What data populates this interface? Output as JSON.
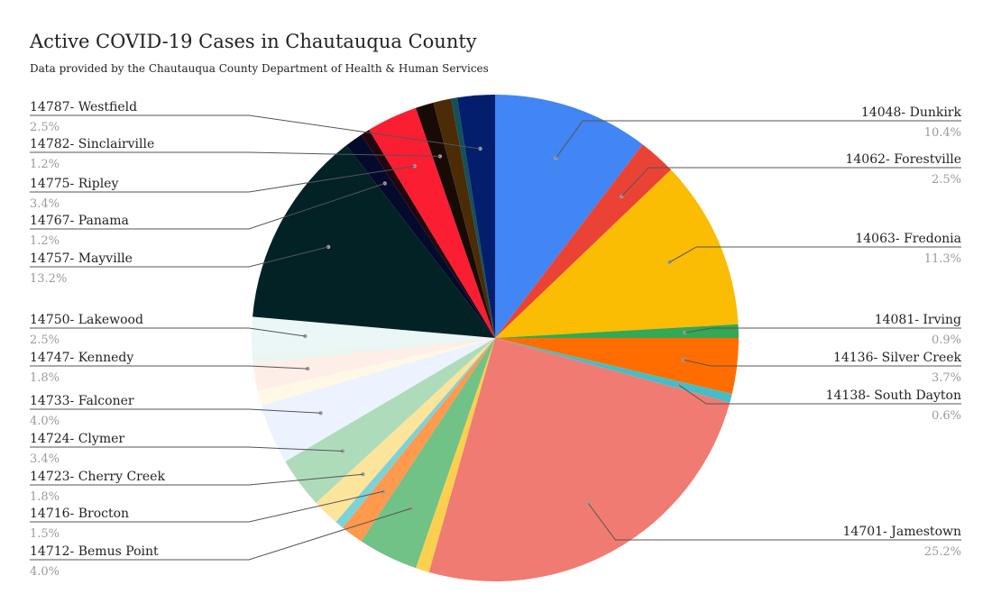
{
  "chart_data": {
    "type": "pie",
    "title": "Active COVID-19 Cases in Chautauqua County",
    "subtitle": "Data provided by the Chautauqua County Department of Health & Human Services",
    "unit": "%",
    "slices": [
      {
        "label": "14048- Dunkirk",
        "value": 10.4,
        "pct_label": "10.4%",
        "color": "#4285f4",
        "side": "right"
      },
      {
        "label": "14062- Forestville",
        "value": 2.5,
        "pct_label": "2.5%",
        "color": "#ea4335",
        "side": "right"
      },
      {
        "label": "14063- Fredonia",
        "value": 11.3,
        "pct_label": "11.3%",
        "color": "#fbbc04",
        "side": "right"
      },
      {
        "label": "14081- Irving",
        "value": 0.9,
        "pct_label": "0.9%",
        "color": "#34a853",
        "side": "right"
      },
      {
        "label": "14136- Silver Creek",
        "value": 3.7,
        "pct_label": "3.7%",
        "color": "#ff6d01",
        "side": "right"
      },
      {
        "label": "14138- South Dayton",
        "value": 0.6,
        "pct_label": "0.6%",
        "color": "#46bdc6",
        "side": "right"
      },
      {
        "label": "14701- Jamestown",
        "value": 25.2,
        "pct_label": "25.2%",
        "color": "#f07b72",
        "side": "right"
      },
      {
        "label": "",
        "value": 0.9,
        "pct_label": "",
        "color": "#fcd04f",
        "side": "none"
      },
      {
        "label": "14712- Bemus Point",
        "value": 4.0,
        "pct_label": "4.0%",
        "color": "#71c287",
        "side": "left"
      },
      {
        "label": "14716- Brocton",
        "value": 1.5,
        "pct_label": "1.5%",
        "color": "#ff994d",
        "side": "left"
      },
      {
        "label": "",
        "value": 0.6,
        "pct_label": "",
        "color": "#7ed1d7",
        "side": "none"
      },
      {
        "label": "14723- Cherry Creek",
        "value": 1.8,
        "pct_label": "1.8%",
        "color": "#fde49b",
        "side": "left"
      },
      {
        "label": "14724- Clymer",
        "value": 3.4,
        "pct_label": "3.4%",
        "color": "#aedcba",
        "side": "left"
      },
      {
        "label": "14733- Falconer",
        "value": 4.0,
        "pct_label": "4.0%",
        "color": "#ecf2fe",
        "side": "left"
      },
      {
        "label": "",
        "value": 1.0,
        "pct_label": "",
        "color": "#fff8e6",
        "side": "none"
      },
      {
        "label": "14747- Kennedy",
        "value": 1.8,
        "pct_label": "1.8%",
        "color": "#fdeee7",
        "side": "left"
      },
      {
        "label": "",
        "value": 0.6,
        "pct_label": "",
        "color": "#eaf6f0",
        "side": "none"
      },
      {
        "label": "14750- Lakewood",
        "value": 2.5,
        "pct_label": "2.5%",
        "color": "#ebf6f7",
        "side": "left"
      },
      {
        "label": "14757- Mayville",
        "value": 13.2,
        "pct_label": "13.2%",
        "color": "#022226",
        "side": "left"
      },
      {
        "label": "14767- Panama",
        "value": 1.2,
        "pct_label": "1.2%",
        "color": "#040a2b",
        "side": "left"
      },
      {
        "label": "",
        "value": 0.6,
        "pct_label": "",
        "color": "#22050e",
        "side": "none"
      },
      {
        "label": "14775- Ripley",
        "value": 3.4,
        "pct_label": "3.4%",
        "color": "#fb1d32",
        "side": "left"
      },
      {
        "label": "14782- Sinclairville",
        "value": 1.2,
        "pct_label": "1.2%",
        "color": "#180b06",
        "side": "left"
      },
      {
        "label": "",
        "value": 1.2,
        "pct_label": "",
        "color": "#4b2c06",
        "side": "none"
      },
      {
        "label": "",
        "value": 0.4,
        "pct_label": "",
        "color": "#14505a",
        "side": "none"
      },
      {
        "label": "14787- Westfield",
        "value": 2.5,
        "pct_label": "2.5%",
        "color": "#021e6c",
        "side": "left"
      }
    ]
  }
}
